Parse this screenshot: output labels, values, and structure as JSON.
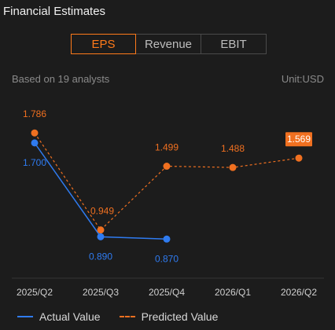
{
  "title": "Financial Estimates",
  "tabs": [
    {
      "label": "EPS",
      "active": true
    },
    {
      "label": "Revenue",
      "active": false
    },
    {
      "label": "EBIT",
      "active": false
    }
  ],
  "analysts_note": "Based on 19 analysts",
  "unit": "Unit:USD",
  "legend": {
    "actual": "Actual Value",
    "predicted": "Predicted Value"
  },
  "colors": {
    "actual": "#2f7bf0",
    "predicted": "#f07020",
    "highlight_bg": "#f07020"
  },
  "chart_data": {
    "type": "line",
    "categories": [
      "2025/Q2",
      "2025/Q3",
      "2025/Q4",
      "2026/Q1",
      "2026/Q2"
    ],
    "series": [
      {
        "name": "Actual Value",
        "values": [
          1.7,
          0.89,
          0.87,
          null,
          null
        ],
        "labels": [
          "1.700",
          "0.890",
          "0.870",
          null,
          null
        ]
      },
      {
        "name": "Predicted Value",
        "values": [
          1.786,
          0.949,
          1.499,
          1.488,
          1.569
        ],
        "labels": [
          "1.786",
          "0.949",
          "1.499",
          "1.488",
          "1.569"
        ]
      }
    ],
    "highlighted_label": "1.569",
    "ylim": [
      0.75,
      1.95
    ]
  }
}
